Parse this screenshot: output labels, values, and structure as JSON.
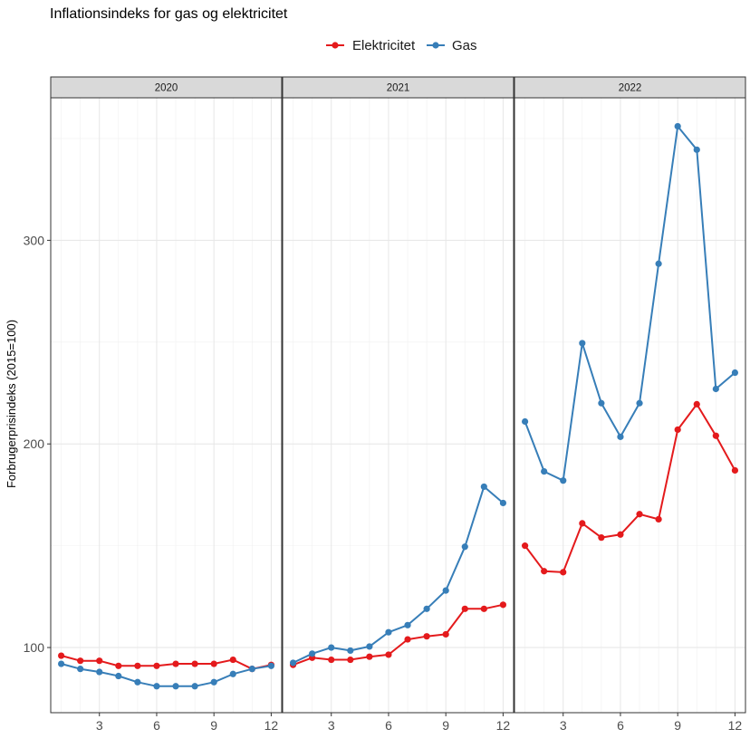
{
  "chart_data": {
    "type": "line",
    "title": "Inflationsindeks for gas og elektricitet",
    "xlabel": "",
    "ylabel": "Forbrugerprisindeks (2015=100)",
    "facets": [
      "2020",
      "2021",
      "2022"
    ],
    "x": [
      1,
      2,
      3,
      4,
      5,
      6,
      7,
      8,
      9,
      10,
      11,
      12
    ],
    "x_ticks": [
      3,
      6,
      9,
      12
    ],
    "xlim": [
      0.45,
      12.55
    ],
    "y_ticks": [
      100,
      200,
      300
    ],
    "ylim": [
      68,
      370
    ],
    "grid": true,
    "legend_position": "top",
    "series": [
      {
        "name": "Elektricitet",
        "color": "#E41A1C",
        "values": {
          "2020": [
            96,
            93.5,
            93.5,
            91,
            91,
            91,
            92,
            92,
            92,
            94,
            89.5,
            91.5
          ],
          "2021": [
            91.5,
            95,
            94,
            94,
            95.5,
            96.5,
            104,
            105.5,
            106.5,
            119,
            119,
            121
          ],
          "2022": [
            150,
            137.5,
            137,
            161,
            154,
            155.5,
            165.5,
            163,
            207,
            219.5,
            204,
            187
          ]
        }
      },
      {
        "name": "Gas",
        "color": "#377EB8",
        "values": {
          "2020": [
            92,
            89.5,
            88,
            86,
            83,
            81,
            81,
            81,
            83,
            87,
            89.5,
            91
          ],
          "2021": [
            92.5,
            97,
            100,
            98.5,
            100.5,
            107.5,
            111,
            119,
            128,
            149.5,
            179,
            171
          ],
          "2022": [
            211,
            186.5,
            182,
            249.5,
            220,
            203.5,
            220,
            288.5,
            356,
            344.5,
            227,
            235
          ]
        }
      }
    ]
  }
}
